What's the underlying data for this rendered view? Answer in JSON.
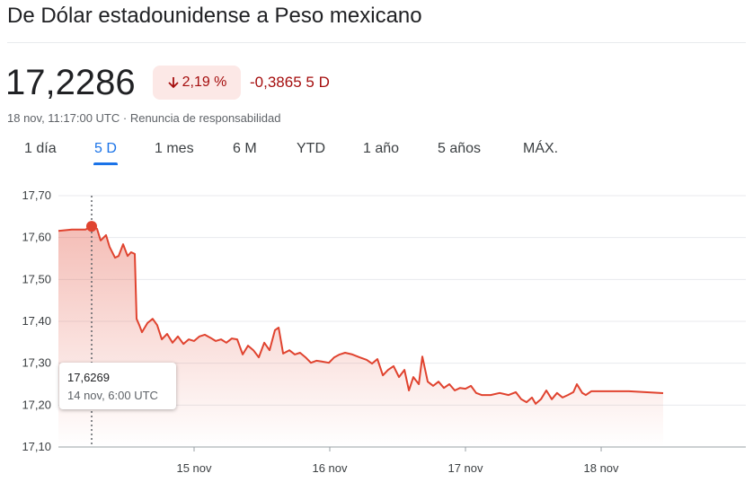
{
  "header": {
    "title": "De Dólar estadounidense a Peso mexicano",
    "price": "17,2286",
    "change_pct": "2,19 %",
    "change": "-0,3865",
    "period": "5 D",
    "timestamp": "18 nov, 11:17:00 UTC ·",
    "disclaimer": "Renuncia de responsabilidad"
  },
  "tabs": {
    "items": [
      "1 día",
      "5 D",
      "1 mes",
      "6 M",
      "YTD",
      "1 año",
      "5 años",
      "MÁX."
    ],
    "active": 1
  },
  "chart_data": {
    "type": "line",
    "color": "#e0432f",
    "grid": true,
    "x": [
      14.0,
      14.099,
      14.199,
      14.245,
      14.285,
      14.311,
      14.351,
      14.377,
      14.417,
      14.444,
      14.477,
      14.51,
      14.536,
      14.563,
      14.576,
      14.596,
      14.616,
      14.656,
      14.695,
      14.728,
      14.762,
      14.801,
      14.841,
      14.881,
      14.921,
      14.96,
      15.0,
      15.04,
      15.079,
      15.119,
      15.159,
      15.199,
      15.238,
      15.278,
      15.318,
      15.358,
      15.397,
      15.437,
      15.477,
      15.517,
      15.556,
      15.596,
      15.623,
      15.656,
      15.702,
      15.742,
      15.781,
      15.821,
      15.861,
      15.901,
      15.94,
      15.993,
      16.033,
      16.073,
      16.113,
      16.166,
      16.219,
      16.272,
      16.311,
      16.351,
      16.391,
      16.43,
      16.47,
      16.51,
      16.55,
      16.583,
      16.616,
      16.656,
      16.682,
      16.722,
      16.762,
      16.801,
      16.841,
      16.881,
      16.921,
      16.96,
      17.0,
      17.04,
      17.079,
      17.119,
      17.185,
      17.252,
      17.318,
      17.371,
      17.411,
      17.45,
      17.49,
      17.517,
      17.556,
      17.596,
      17.636,
      17.675,
      17.715,
      17.755,
      17.795,
      17.821,
      17.861,
      17.887,
      17.927,
      18.205,
      18.457
    ],
    "values": [
      17.616,
      17.619,
      17.619,
      17.6269,
      17.621,
      17.593,
      17.606,
      17.578,
      17.552,
      17.556,
      17.584,
      17.556,
      17.565,
      17.561,
      17.406,
      17.391,
      17.374,
      17.396,
      17.406,
      17.391,
      17.357,
      17.37,
      17.349,
      17.364,
      17.346,
      17.357,
      17.353,
      17.364,
      17.368,
      17.361,
      17.353,
      17.357,
      17.349,
      17.359,
      17.357,
      17.321,
      17.342,
      17.331,
      17.314,
      17.349,
      17.331,
      17.379,
      17.385,
      17.323,
      17.331,
      17.321,
      17.325,
      17.314,
      17.301,
      17.306,
      17.304,
      17.301,
      17.314,
      17.321,
      17.325,
      17.321,
      17.314,
      17.308,
      17.299,
      17.31,
      17.271,
      17.284,
      17.293,
      17.267,
      17.284,
      17.235,
      17.267,
      17.25,
      17.316,
      17.256,
      17.246,
      17.256,
      17.241,
      17.25,
      17.235,
      17.241,
      17.239,
      17.246,
      17.229,
      17.224,
      17.224,
      17.229,
      17.224,
      17.231,
      17.214,
      17.207,
      17.218,
      17.203,
      17.214,
      17.235,
      17.214,
      17.229,
      17.218,
      17.224,
      17.231,
      17.25,
      17.229,
      17.224,
      17.233,
      17.233,
      17.2286
    ],
    "xlim": [
      14,
      19.066
    ],
    "xticks": [
      {
        "value": 15,
        "label": "15 nov"
      },
      {
        "value": 16,
        "label": "16 nov"
      },
      {
        "value": 17,
        "label": "17 nov"
      },
      {
        "value": 18,
        "label": "18 nov"
      }
    ],
    "ylim": [
      17.1,
      17.7
    ],
    "yticks": [
      {
        "value": 17.1,
        "label": "17,10"
      },
      {
        "value": 17.2,
        "label": "17,20"
      },
      {
        "value": 17.3,
        "label": "17,30"
      },
      {
        "value": 17.4,
        "label": "17,40"
      },
      {
        "value": 17.5,
        "label": "17,50"
      },
      {
        "value": 17.6,
        "label": "17,60"
      },
      {
        "value": 17.7,
        "label": "17,70"
      }
    ],
    "tooltip": {
      "x": 14.245,
      "y": 17.6269,
      "label": "17,6269",
      "time": "14 nov, 6:00 UTC"
    }
  }
}
